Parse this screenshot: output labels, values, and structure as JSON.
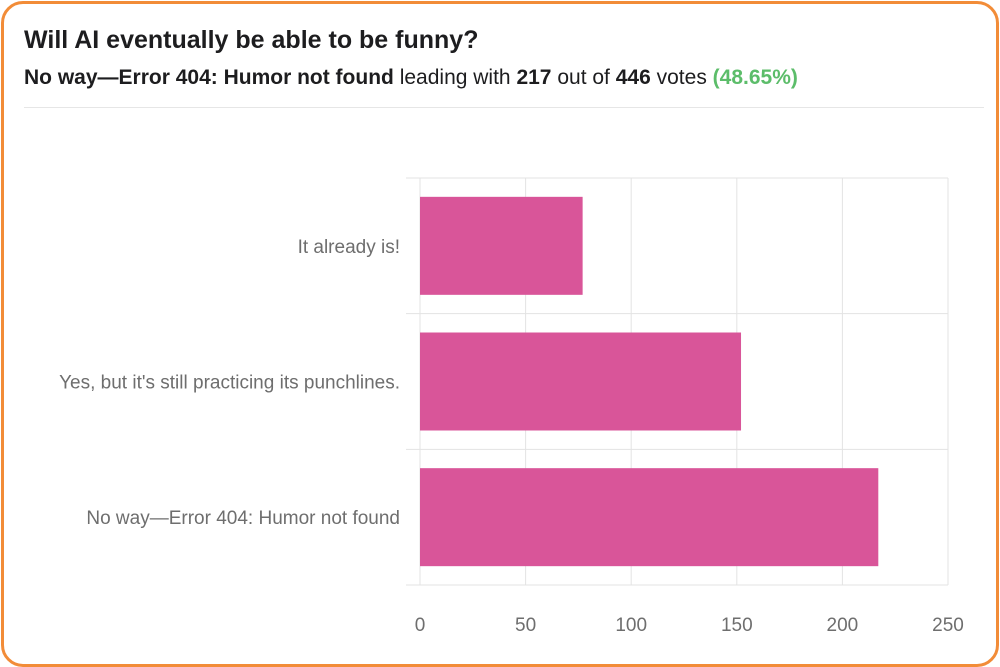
{
  "poll": {
    "question": "Will AI eventually be able to be funny?",
    "leader": "No way—Error 404: Humor not found",
    "leading_with": "leading with",
    "leader_votes": "217",
    "out_of": "out of",
    "total_votes": "446",
    "votes_word": "votes",
    "leader_pct": "(48.65%)"
  },
  "colors": {
    "bar": "#d95599",
    "border": "#f28c38",
    "percent": "#5cbd6a",
    "grid": "#e3e3e3"
  },
  "chart_data": {
    "type": "bar",
    "orientation": "horizontal",
    "categories": [
      "It already is!",
      "Yes, but it's still practicing its punchlines.",
      "No way—Error 404: Humor not found"
    ],
    "values": [
      77,
      152,
      217
    ],
    "xticks": [
      0,
      50,
      100,
      150,
      200,
      250
    ],
    "xlim": [
      0,
      250
    ],
    "grid": true,
    "legend": "none"
  }
}
